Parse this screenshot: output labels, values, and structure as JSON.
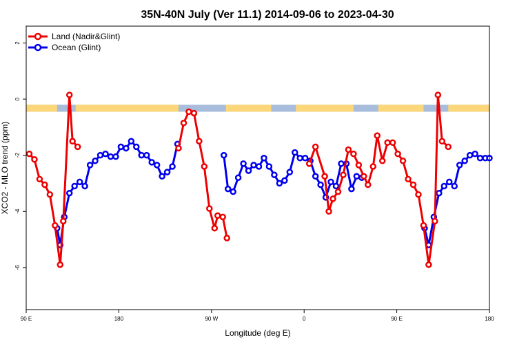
{
  "chart_data": {
    "type": "line",
    "title": "35N-40N July (Ver 11.1)   2014-09-06 to 2023-04-30",
    "xlabel": "Longitude (deg E)",
    "ylabel": "XCO2 - MLO trend (ppm)",
    "xlim": [
      90,
      540
    ],
    "ylim": [
      -7.5,
      2.6
    ],
    "x_ticks": [
      {
        "value": 90,
        "label": "90 E"
      },
      {
        "value": 180,
        "label": "180"
      },
      {
        "value": 270,
        "label": "90 W"
      },
      {
        "value": 360,
        "label": "0"
      },
      {
        "value": 450,
        "label": "90 E"
      },
      {
        "value": 540,
        "label": "180"
      }
    ],
    "y_ticks": [
      {
        "value": 2,
        "label": "2"
      },
      {
        "value": 0,
        "label": "0"
      },
      {
        "value": -2,
        "label": "-2"
      },
      {
        "value": -4,
        "label": "-4"
      },
      {
        "value": -6,
        "label": "-6"
      }
    ],
    "legend_position": "top-left",
    "land_ocean_strip": {
      "y_range": [
        -0.45,
        -0.2
      ],
      "land_color": "#fcd77a",
      "ocean_color": "#a8bddb",
      "land_segments": [
        [
          90,
          120
        ],
        [
          138,
          238
        ],
        [
          284,
          328
        ],
        [
          352,
          408
        ],
        [
          432,
          476
        ],
        [
          500,
          540
        ]
      ]
    },
    "series": [
      {
        "name": "Land (Nadir&Glint)",
        "color": "#ee0000",
        "segments": [
          {
            "x": [
              93,
              98,
              103,
              108,
              113,
              118,
              123,
              126,
              132,
              135,
              140
            ],
            "y": [
              -1.95,
              -2.15,
              -2.85,
              -3.05,
              -3.4,
              -4.5,
              -5.9,
              -4.35,
              0.15,
              -1.5,
              -1.7
            ]
          },
          {
            "x": [
              238,
              243,
              248,
              253,
              258,
              263,
              268,
              273,
              276,
              281,
              285
            ],
            "y": [
              -1.75,
              -0.85,
              -0.45,
              -0.5,
              -1.5,
              -2.4,
              -3.9,
              -4.6,
              -4.15,
              -4.2,
              -4.95
            ]
          },
          {
            "x": [
              365,
              371,
              380,
              384,
              388,
              393,
              398,
              403,
              408,
              413,
              418,
              422,
              427,
              431,
              436,
              441,
              446,
              451,
              456,
              461,
              466,
              471,
              476,
              481,
              487,
              490,
              494,
              500
            ],
            "y": [
              -2.3,
              -1.7,
              -2.75,
              -4.0,
              -3.55,
              -3.3,
              -2.7,
              -1.8,
              -1.95,
              -2.35,
              -2.75,
              -3.05,
              -2.4,
              -1.3,
              -2.2,
              -1.55,
              -1.55,
              -1.95,
              -2.2,
              -2.85,
              -3.05,
              -3.4,
              -4.5,
              -5.9,
              -4.35,
              0.15,
              -1.5,
              -1.7
            ]
          }
        ]
      },
      {
        "name": "Ocean (Glint)",
        "color": "#0000ee",
        "segments": [
          {
            "x": [
              120,
              123,
              127,
              132,
              137,
              142,
              147,
              152,
              157,
              162,
              167,
              172,
              177,
              182,
              187,
              192,
              197,
              202,
              207,
              212,
              217,
              222,
              227,
              232,
              237
            ],
            "y": [
              -4.6,
              -5.2,
              -4.2,
              -3.35,
              -3.1,
              -2.95,
              -3.1,
              -2.35,
              -2.2,
              -2.0,
              -1.95,
              -2.05,
              -2.05,
              -1.7,
              -1.75,
              -1.5,
              -1.7,
              -2.0,
              -2.0,
              -2.25,
              -2.35,
              -2.75,
              -2.6,
              -2.4,
              -1.6
            ]
          },
          {
            "x": [
              282,
              286,
              291,
              296,
              301,
              306,
              311,
              316,
              321,
              326,
              331,
              336,
              341,
              346,
              351,
              356,
              361,
              366,
              371,
              376,
              381,
              386,
              391,
              396,
              401,
              406,
              411,
              416
            ],
            "y": [
              -2.0,
              -3.2,
              -3.3,
              -2.8,
              -2.3,
              -2.55,
              -2.35,
              -2.4,
              -2.1,
              -2.4,
              -2.7,
              -3.0,
              -2.9,
              -2.6,
              -1.9,
              -2.1,
              -2.1,
              -2.2,
              -2.75,
              -3.05,
              -3.5,
              -2.95,
              -3.1,
              -2.3,
              -2.3,
              -3.2,
              -2.75,
              -2.8
            ]
          },
          {
            "x": [
              477,
              481,
              486,
              491,
              496,
              501,
              506,
              511,
              516,
              521,
              526,
              531,
              536,
              540
            ],
            "y": [
              -4.6,
              -5.2,
              -4.2,
              -3.35,
              -3.1,
              -2.95,
              -3.1,
              -2.35,
              -2.2,
              -2.0,
              -1.95,
              -2.1,
              -2.1,
              -2.1
            ]
          }
        ]
      }
    ]
  }
}
